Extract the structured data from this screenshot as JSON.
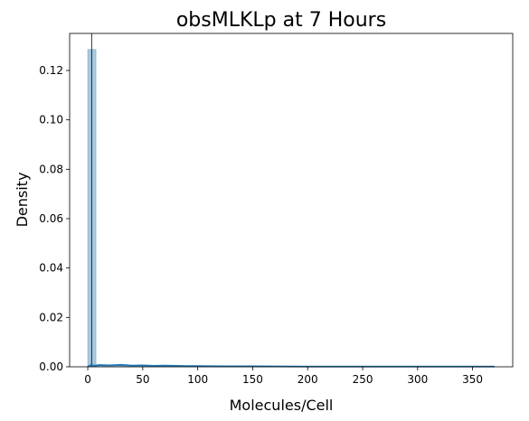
{
  "chart_data": {
    "type": "bar",
    "title": "obsMLKLp at 7 Hours",
    "xlabel": "Molecules/Cell",
    "ylabel": "Density",
    "xlim": [
      -16.5,
      386.5
    ],
    "ylim": [
      0,
      0.135
    ],
    "xticks": [
      0,
      50,
      100,
      150,
      200,
      250,
      300,
      350
    ],
    "yticks": [
      0.0,
      0.02,
      0.04,
      0.06,
      0.08,
      0.1,
      0.12
    ],
    "ytick_labels": [
      "0.00",
      "0.02",
      "0.04",
      "0.06",
      "0.08",
      "0.10",
      "0.12"
    ],
    "grid": false,
    "bins": {
      "width": 7.4,
      "edges_start": 0,
      "values": [
        0.1285,
        0.0006,
        0.0005,
        0.0005,
        0.0004,
        0.0004,
        0.0004,
        0.0003,
        0.0003,
        0.0003,
        0.0003,
        0.0002,
        0.0002,
        0.0002,
        0.0002,
        0.0002,
        0.0002,
        0.0002,
        0.0001,
        0.0001,
        0.0001,
        0.0001,
        0.0001,
        0.0001,
        0.0001,
        0.0001,
        0.0001,
        0.0001,
        0.0001,
        0.0001,
        0.0001,
        0.0001,
        0.0001,
        0.0001,
        0.0001,
        0.0001,
        0.0001,
        0.0001,
        0.0001,
        0.0001,
        0.0001,
        0.0001,
        0.0001,
        0.0001,
        0.0001,
        0.0001,
        0.0001,
        0.0001,
        0.0001,
        0.0001
      ]
    },
    "kde": {
      "x": [
        0,
        3,
        6,
        10,
        20,
        30,
        40,
        50,
        60,
        70,
        80,
        90,
        100,
        120,
        150,
        200,
        250,
        300,
        350,
        370
      ],
      "y": [
        0.0,
        0.0008,
        0.0004,
        0.0007,
        0.0006,
        0.0008,
        0.0005,
        0.0006,
        0.0004,
        0.0005,
        0.0004,
        0.0003,
        0.0003,
        0.0002,
        0.0002,
        0.0001,
        0.0001,
        0.0001,
        0.0001,
        0.0001
      ]
    },
    "vline_x": 3.5,
    "colors": {
      "bar_fill": "#a8c8de",
      "bar_edge": "#7fa9c7",
      "kde_line": "#1f77b4",
      "vline": "#000000"
    }
  }
}
